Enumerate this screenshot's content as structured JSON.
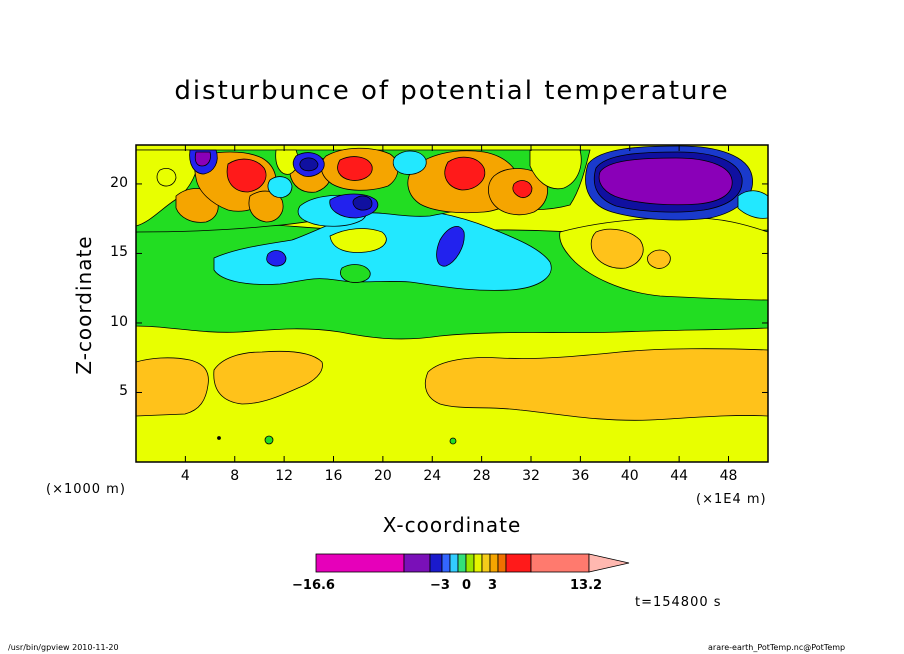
{
  "chart_data": {
    "type": "heatmap",
    "title": "disturbunce of potential temperature",
    "xlabel": "X-coordinate",
    "ylabel": "Z-coordinate",
    "x_unit_left": "(×1000 m)",
    "x_unit_right": "(×1E4 m)",
    "x_ticks": [
      "4",
      "8",
      "12",
      "16",
      "20",
      "24",
      "28",
      "32",
      "36",
      "40",
      "44",
      "48"
    ],
    "x_tick_values": [
      4,
      8,
      12,
      16,
      20,
      24,
      28,
      32,
      36,
      40,
      44,
      48
    ],
    "y_ticks": [
      "5",
      "10",
      "15",
      "20"
    ],
    "y_tick_values": [
      5,
      10,
      15,
      20
    ],
    "xlim": [
      0,
      51.2
    ],
    "ylim": [
      0,
      22.8
    ],
    "time_label": "t=154800 s",
    "colorbar": {
      "min_label": "−16.6",
      "max_label": "13.2",
      "mid_labels": [
        "−3",
        "0",
        "3"
      ],
      "colors": [
        "#e600ba",
        "#7a10b8",
        "#1a1acc",
        "#3366ff",
        "#33ccff",
        "#33e07a",
        "#99e600",
        "#e6f500",
        "#f5cc1a",
        "#f5a500",
        "#f07000",
        "#ff1a1a",
        "#ff7a6e",
        "#ffb8b0"
      ]
    },
    "regions": [
      {
        "value_class": "slightly warm (0 to 1)",
        "color": "#e8ff00",
        "location": "z < 9 km, whole domain"
      },
      {
        "value_class": "warm (1 to 2)",
        "color": "#ffc21a",
        "location": "z 4-7 km, x 0-13 and 24-51"
      },
      {
        "value_class": "slightly cold",
        "color": "#22dd22",
        "location": "z 9-14 km"
      },
      {
        "value_class": "cold",
        "color": "#22e8ff",
        "location": "z 13-20 km, x 7-34"
      },
      {
        "value_class": "very cold (minimum -16.6)",
        "color": "#8a00b8",
        "location": "z 18-22 km, x 37-47"
      },
      {
        "value_class": "very warm",
        "color": "#ff1a1a",
        "location": "z 19-22 km, x 8-32"
      }
    ]
  },
  "footer": {
    "left": "/usr/bin/gpview   2010-11-20",
    "right": "arare-earth_PotTemp.nc@PotTemp"
  }
}
